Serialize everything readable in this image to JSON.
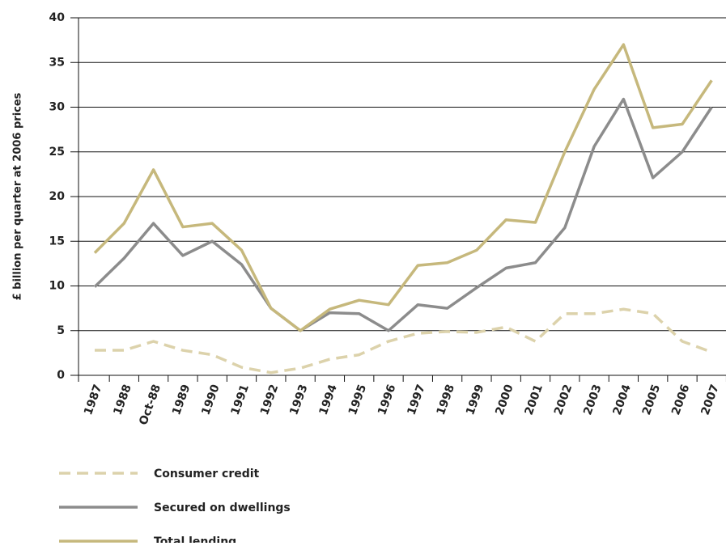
{
  "chart_data": {
    "type": "line",
    "y_label": "£ billion per quarter at 2006 prices",
    "categories": [
      "1987",
      "1988",
      "Oct-88",
      "1989",
      "1990",
      "1991",
      "1992",
      "1993",
      "1994",
      "1995",
      "1996",
      "1997",
      "1998",
      "1999",
      "2000",
      "2001",
      "2002",
      "2003",
      "2004",
      "2005",
      "2006",
      "2007"
    ],
    "series": [
      {
        "name": "Consumer credit",
        "color": "#dcd2ab",
        "dashed": true,
        "values": [
          2.8,
          2.8,
          3.8,
          2.8,
          2.3,
          0.9,
          0.3,
          0.8,
          1.8,
          2.3,
          3.8,
          4.7,
          4.9,
          4.8,
          5.4,
          3.8,
          6.9,
          6.9,
          7.4,
          6.9,
          3.8,
          2.6
        ]
      },
      {
        "name": "Secured on dwellings",
        "color": "#8c8c8c",
        "dashed": false,
        "values": [
          9.9,
          13.1,
          17,
          13.4,
          15,
          12.4,
          7.5,
          5,
          7,
          6.9,
          5,
          7.9,
          7.5,
          9.8,
          12,
          12.6,
          16.5,
          25.6,
          30.9,
          22.1,
          25,
          30
        ]
      },
      {
        "name": "Total lending",
        "color": "#c6b87c",
        "dashed": false,
        "values": [
          13.7,
          17,
          23,
          16.6,
          17,
          14,
          7.5,
          5,
          7.4,
          8.4,
          7.9,
          12.3,
          12.6,
          14,
          17.4,
          17.1,
          25,
          32,
          37,
          27.7,
          28.1,
          33
        ]
      }
    ],
    "ylim": [
      0,
      40
    ],
    "yticks": [
      0,
      5,
      10,
      15,
      20,
      25,
      30,
      35,
      40
    ],
    "grid": true,
    "legend": "bottom-left"
  }
}
